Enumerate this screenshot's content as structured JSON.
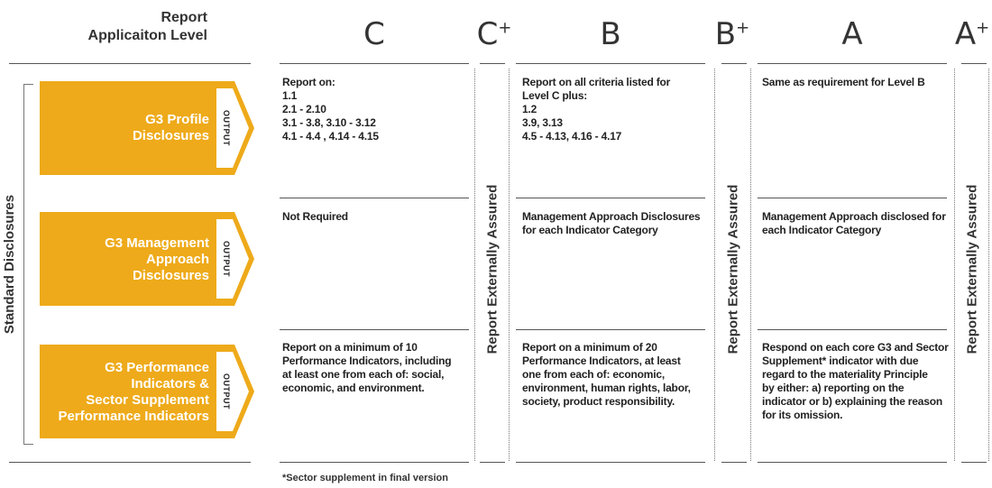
{
  "header": {
    "title_line1": "Report",
    "title_line2": "Applicaiton Level",
    "levels": [
      "C",
      "C",
      "B",
      "B",
      "A",
      "A"
    ],
    "plus": "+"
  },
  "side_label": "Standard Disclosures",
  "rows": [
    {
      "label": "G3 Profile\nDisclosures",
      "output": "OUTPUT",
      "c": "Report on:\n1.1\n2.1 -  2.10\n3.1 - 3.8, 3.10 - 3.12\n4.1 - 4.4 , 4.14 - 4.15",
      "b": "Report on all criteria listed for\nLevel C plus:\n1.2\n3.9, 3.13\n4.5 - 4.13, 4.16 - 4.17",
      "a": "Same as requirement for Level B"
    },
    {
      "label": "G3 Management\nApproach\nDisclosures",
      "output": "OUTPUT",
      "c": "Not Required",
      "b": "Management Approach Disclosures\nfor each Indicator Category",
      "a": "Management Approach disclosed for\neach Indicator Category"
    },
    {
      "label": "G3 Performance\nIndicators &\nSector Supplement\nPerformance Indicators",
      "output": "OUTPUT",
      "c": "Report on a minimum of 10\nPerformance Indicators, including\nat least one from each of: social,\neconomic, and environment.",
      "b": "Report on a minimum of 20\nPerformance Indicators, at least\none from each of: economic,\nenvironment, human rights, labor,\nsociety, product responsibility.",
      "a": "Respond on each core G3 and Sector\nSupplement* indicator with due\nregard to the materiality Principle\nby either: a) reporting on the\nindicator or b) explaining the reason\nfor its omission."
    }
  ],
  "assured_label": "Report Externally Assured",
  "footnote": "*Sector supplement in final version",
  "colors": {
    "orange": "#eeaa1a",
    "orange_dark": "#d9940a",
    "line": "#555555"
  },
  "icons": [
    "output-arrow-icon"
  ]
}
